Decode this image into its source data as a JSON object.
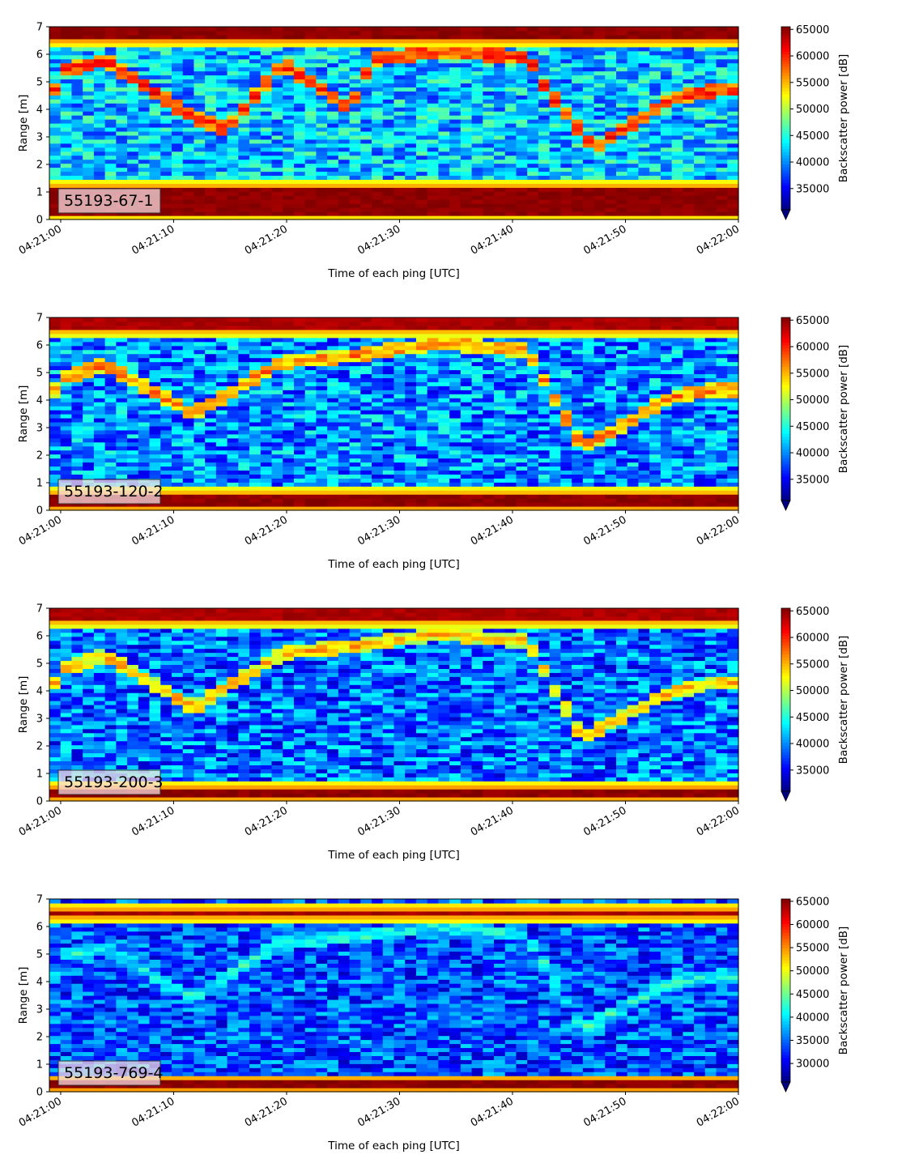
{
  "chart_data": [
    {
      "type": "heatmap",
      "label": "55193-67-1",
      "xlabel": "Time of each ping [UTC]",
      "ylabel": "Range [m]",
      "x_ticks": [
        "04:21:00",
        "04:21:10",
        "04:21:20",
        "04:21:30",
        "04:21:40",
        "04:21:50",
        "04:22:00"
      ],
      "x_range": [
        "04:20:59",
        "04:22:00"
      ],
      "y_ticks": [
        0,
        1,
        2,
        3,
        4,
        5,
        6,
        7
      ],
      "ylim": [
        0,
        7
      ],
      "colorbar": {
        "label": "Backscatter power [dB]",
        "ticks": [
          35000,
          40000,
          45000,
          50000,
          55000,
          60000,
          65000
        ],
        "range": [
          31000,
          65500
        ],
        "colormap": "jet",
        "extend": "min"
      },
      "features": [
        {
          "name": "bottom band",
          "range_m": [
            0.2,
            1.2
          ],
          "level": 65000
        },
        {
          "name": "top band",
          "range_m": [
            6.5,
            7.0
          ],
          "level": 65000
        },
        {
          "name": "scatter layer",
          "path": [
            [
              0,
              5.4
            ],
            [
              4,
              5.8
            ],
            [
              12,
              3.7
            ],
            [
              15,
              3.3
            ],
            [
              20,
              5.7
            ],
            [
              26,
              4.0
            ],
            [
              28,
              5.8
            ],
            [
              34,
              6.1
            ],
            [
              42,
              5.9
            ],
            [
              44,
              4.6
            ],
            [
              48,
              2.6
            ],
            [
              55,
              4.4
            ],
            [
              59,
              4.7
            ]
          ],
          "level": 60000
        }
      ],
      "background_level": 42000
    },
    {
      "type": "heatmap",
      "label": "55193-120-2",
      "xlabel": "Time of each ping [UTC]",
      "ylabel": "Range [m]",
      "x_ticks": [
        "04:21:00",
        "04:21:10",
        "04:21:20",
        "04:21:30",
        "04:21:40",
        "04:21:50",
        "04:22:00"
      ],
      "x_range": [
        "04:20:59",
        "04:22:00"
      ],
      "y_ticks": [
        0,
        1,
        2,
        3,
        4,
        5,
        6,
        7
      ],
      "ylim": [
        0,
        7
      ],
      "colorbar": {
        "label": "Backscatter power [dB]",
        "ticks": [
          35000,
          40000,
          45000,
          50000,
          55000,
          60000,
          65000
        ],
        "range": [
          31000,
          65500
        ],
        "colormap": "jet",
        "extend": "min"
      },
      "features": [
        {
          "name": "bottom band",
          "range_m": [
            0.1,
            0.6
          ],
          "level": 65000
        },
        {
          "name": "top band",
          "range_m": [
            6.5,
            7.0
          ],
          "level": 64000
        },
        {
          "name": "scatter layer",
          "path": [
            [
              0,
              4.8
            ],
            [
              4,
              5.3
            ],
            [
              12,
              3.5
            ],
            [
              20,
              5.4
            ],
            [
              26,
              5.6
            ],
            [
              34,
              6.1
            ],
            [
              42,
              5.8
            ],
            [
              44,
              4.4
            ],
            [
              47,
              2.3
            ],
            [
              55,
              4.1
            ],
            [
              59,
              4.4
            ]
          ],
          "level": 57000
        }
      ],
      "background_level": 40000
    },
    {
      "type": "heatmap",
      "label": "55193-200-3",
      "xlabel": "Time of each ping [UTC]",
      "ylabel": "Range [m]",
      "x_ticks": [
        "04:21:00",
        "04:21:10",
        "04:21:20",
        "04:21:30",
        "04:21:40",
        "04:21:50",
        "04:22:00"
      ],
      "x_range": [
        "04:20:59",
        "04:22:00"
      ],
      "y_ticks": [
        0,
        1,
        2,
        3,
        4,
        5,
        6,
        7
      ],
      "ylim": [
        0,
        7
      ],
      "colorbar": {
        "label": "Backscatter power [dB]",
        "ticks": [
          35000,
          40000,
          45000,
          50000,
          55000,
          60000,
          65000
        ],
        "range": [
          31000,
          65500
        ],
        "colormap": "jet",
        "extend": "min"
      },
      "features": [
        {
          "name": "bottom band",
          "range_m": [
            0.1,
            0.5
          ],
          "level": 65000
        },
        {
          "name": "top band",
          "range_m": [
            6.5,
            7.0
          ],
          "level": 64000
        },
        {
          "name": "scatter layer",
          "path": [
            [
              0,
              4.8
            ],
            [
              4,
              5.3
            ],
            [
              12,
              3.4
            ],
            [
              20,
              5.4
            ],
            [
              26,
              5.6
            ],
            [
              34,
              6.1
            ],
            [
              42,
              5.8
            ],
            [
              44,
              4.4
            ],
            [
              47,
              2.3
            ],
            [
              55,
              4.0
            ],
            [
              59,
              4.3
            ]
          ],
          "level": 55000
        }
      ],
      "background_level": 39000
    },
    {
      "type": "heatmap",
      "label": "55193-769-4",
      "xlabel": "Time of each ping [UTC]",
      "ylabel": "Range [m]",
      "x_ticks": [
        "04:21:00",
        "04:21:10",
        "04:21:20",
        "04:21:30",
        "04:21:40",
        "04:21:50",
        "04:22:00"
      ],
      "x_range": [
        "04:20:59",
        "04:22:00"
      ],
      "y_ticks": [
        0,
        1,
        2,
        3,
        4,
        5,
        6,
        7
      ],
      "ylim": [
        0,
        7
      ],
      "colorbar": {
        "label": "Backscatter power [dB]",
        "ticks": [
          30000,
          35000,
          40000,
          45000,
          50000,
          55000,
          60000,
          65000
        ],
        "range": [
          26000,
          65500
        ],
        "colormap": "jet",
        "extend": "min"
      },
      "features": [
        {
          "name": "bottom band",
          "range_m": [
            0.15,
            0.4
          ],
          "level": 65000
        },
        {
          "name": "top band",
          "range_m": [
            6.4,
            6.6
          ],
          "level": 64000
        },
        {
          "name": "scatter layer",
          "path": [
            [
              0,
              5.0
            ],
            [
              4,
              5.2
            ],
            [
              12,
              3.4
            ],
            [
              20,
              5.5
            ],
            [
              26,
              5.6
            ],
            [
              34,
              6.0
            ],
            [
              42,
              5.7
            ],
            [
              44,
              4.3
            ],
            [
              47,
              2.3
            ],
            [
              55,
              4.0
            ],
            [
              59,
              4.2
            ]
          ],
          "level": 42000
        }
      ],
      "background_level": 34000
    }
  ]
}
